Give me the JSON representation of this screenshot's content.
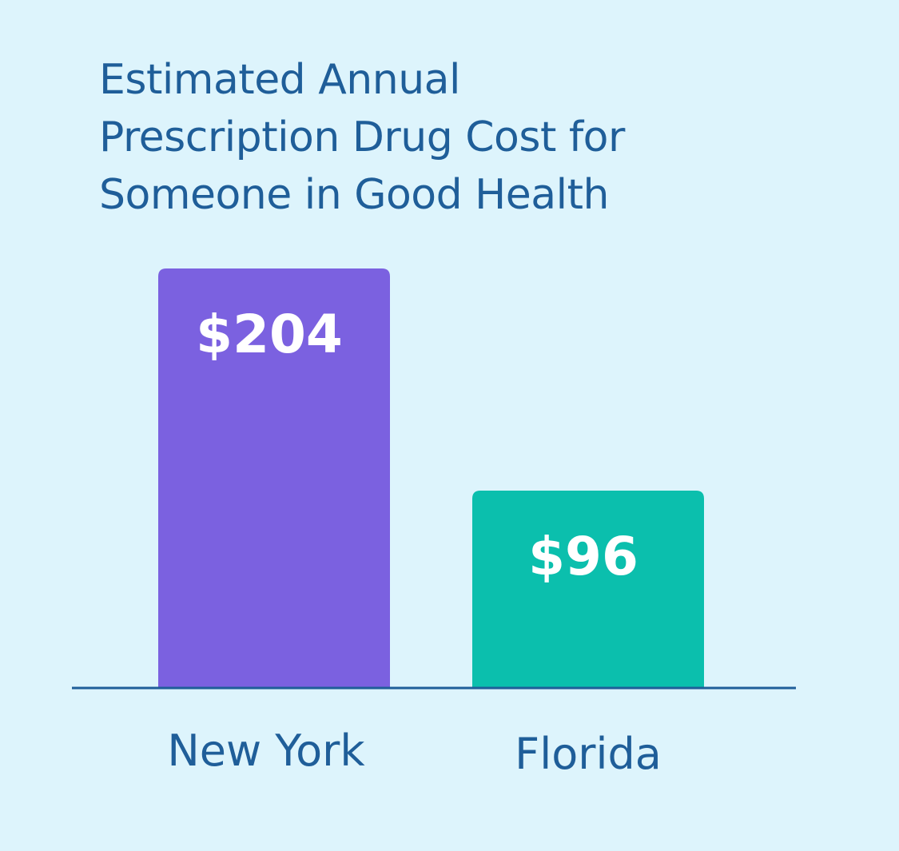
{
  "title_lines": [
    "Estimated Annual",
    "Prescription Drug Cost for",
    "Someone in Good Health"
  ],
  "chart_data": {
    "type": "bar",
    "title": "Estimated Annual Prescription Drug Cost for Someone in Good Health",
    "categories": [
      "New York",
      "Florida"
    ],
    "values": [
      204,
      96
    ],
    "value_labels": [
      "$204",
      "$96"
    ],
    "bar_colors": [
      "#7b61e0",
      "#0bbfad"
    ],
    "axis_color": "#1f5e99",
    "label_color": "#1f5e99",
    "value_label_color": "#ffffff",
    "grid": false,
    "legend": "none",
    "xlabel": "",
    "ylabel": ""
  }
}
